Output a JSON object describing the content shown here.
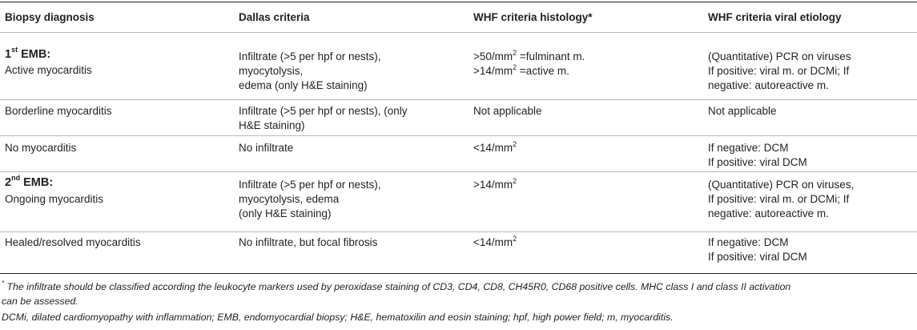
{
  "headers": [
    "Biopsy diagnosis",
    "Dallas criteria",
    "WHF criteria histology*",
    "WHF criteria viral etiology"
  ],
  "rows": [
    {
      "diagnosis_head": {
        "num": "1",
        "sup": "st",
        "rest": " EMB:"
      },
      "diagnosis": "Active myocarditis",
      "dallas": [
        "Infiltrate (>5 per hpf or nests),",
        "myocytolysis,",
        "edema (only H&E staining)"
      ],
      "histology": [
        {
          "pre": ">50/mm",
          "sup": "2",
          "post": " =fulminant m."
        },
        {
          "pre": ">14/mm",
          "sup": "2",
          "post": " =active m."
        }
      ],
      "viral": [
        "(Quantitative) PCR on viruses",
        "If positive: viral m. or DCMi; If",
        "negative: autoreactive m."
      ]
    },
    {
      "diagnosis": "Borderline myocarditis",
      "dallas": [
        "Infiltrate (>5 per hpf or nests), (only",
        "H&E staining)"
      ],
      "histology_text": "Not applicable",
      "viral": [
        "Not applicable"
      ]
    },
    {
      "diagnosis": "No myocarditis",
      "dallas": [
        "No infiltrate"
      ],
      "histology": [
        {
          "pre": "<14/mm",
          "sup": "2",
          "post": ""
        }
      ],
      "viral": [
        "If negative: DCM",
        "If positive: viral DCM"
      ]
    },
    {
      "diagnosis_head": {
        "num": "2",
        "sup": "nd",
        "rest": " EMB:"
      },
      "diagnosis": "Ongoing myocarditis",
      "dallas": [
        "Infiltrate (>5 per hpf or nests),",
        "myocytolysis, edema",
        "(only H&E staining)"
      ],
      "histology": [
        {
          "pre": ">14/mm",
          "sup": "2",
          "post": ""
        }
      ],
      "viral": [
        "(Quantitative) PCR on viruses,",
        "If positive: viral m. or DCMi; If",
        "negative: autoreactive m."
      ]
    },
    {
      "diagnosis": "Healed/resolved myocarditis",
      "dallas": [
        "No infiltrate, but focal fibrosis"
      ],
      "histology": [
        {
          "pre": "<14/mm",
          "sup": "2",
          "post": ""
        }
      ],
      "viral": [
        "If negative: DCM",
        "If positive: viral DCM"
      ]
    }
  ],
  "footnotes": {
    "note1_mark": "*",
    "note1_line1": " The infiltrate should be classified according the leukocyte markers used by peroxidase staining of CD3, CD4, CD8, CH45R0, CD68 positive cells. MHC class I and class II activation",
    "note1_line2": "can be assessed.",
    "note2": "DCMi, dilated cardiomyopathy with inflammation; EMB, endomyocardial biopsy; H&E, hematoxilin and eosin staining; hpf, high power field; m, myocarditis."
  }
}
